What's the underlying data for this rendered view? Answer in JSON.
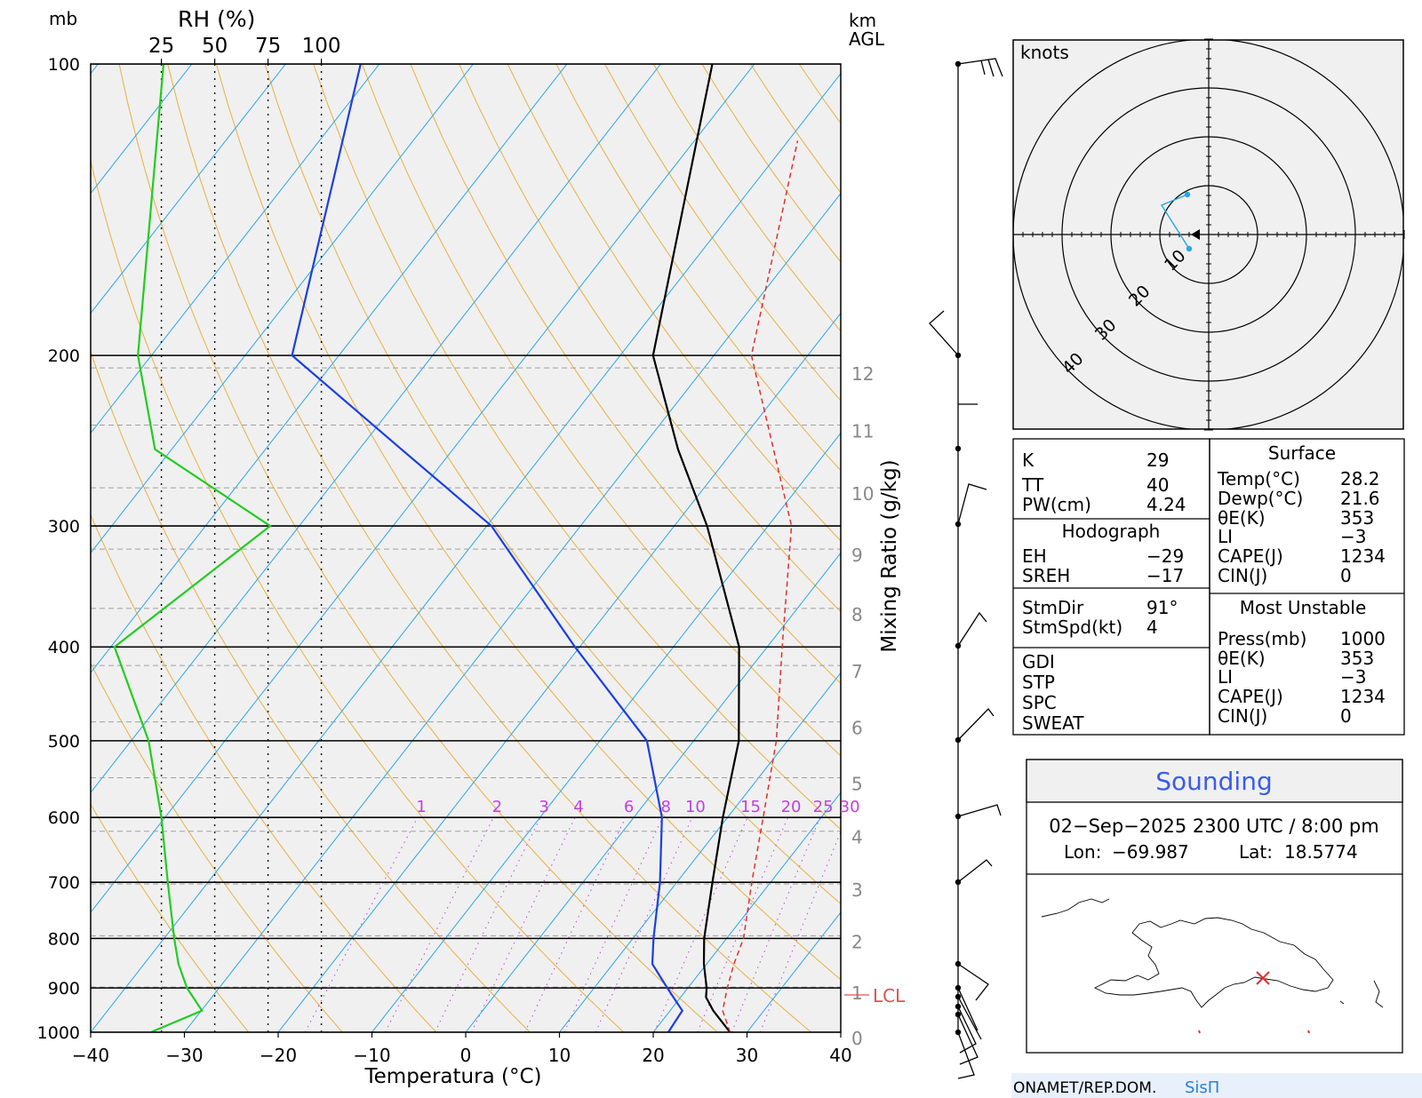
{
  "skewt": {
    "left_units": "mb",
    "rh_label": "RH (%)",
    "rh_ticks": [
      "25",
      "50",
      "75",
      "100"
    ],
    "km_label_1": "km",
    "km_label_2": "AGL",
    "mixing_ratio_axis_label": "Mixing Ratio (g/kg)",
    "x_axis_label": "Temperatura (°C)",
    "lcl_label": "LCL",
    "mixing_ratio_labels": [
      "1",
      "2",
      "3",
      "4",
      "6",
      "8",
      "10",
      "15",
      "20",
      "25",
      "30"
    ]
  },
  "chart_data": {
    "type": "line",
    "title": "",
    "xlabel": "Temperatura (°C)",
    "ylabel": "mb",
    "x_ticks": [
      -40,
      -30,
      -20,
      -10,
      0,
      10,
      20,
      30,
      40
    ],
    "pressure_ticks": [
      100,
      200,
      300,
      400,
      500,
      600,
      700,
      800,
      900,
      1000
    ],
    "km_agl_ticks": [
      0,
      1,
      2,
      3,
      4,
      5,
      6,
      7,
      8,
      9,
      10,
      11,
      12
    ],
    "xlim": [
      -40,
      40
    ],
    "ylim_mb": [
      1000,
      100
    ],
    "grid": true,
    "series": [
      {
        "name": "",
        "color": "#000000",
        "points": [
          [
            1000,
            28.2
          ],
          [
            950,
            24.6
          ],
          [
            920,
            22.7
          ],
          [
            900,
            22.0
          ],
          [
            850,
            19.7
          ],
          [
            800,
            17.6
          ],
          [
            700,
            13.8
          ],
          [
            600,
            9.5
          ],
          [
            500,
            4.8
          ],
          [
            400,
            -3.0
          ],
          [
            300,
            -16.5
          ],
          [
            250,
            -26.0
          ],
          [
            200,
            -36.5
          ],
          [
            100,
            -54.5
          ]
        ]
      },
      {
        "name": "",
        "color": "#1a3fe0",
        "points": [
          [
            1000,
            21.6
          ],
          [
            950,
            21.3
          ],
          [
            900,
            17.8
          ],
          [
            850,
            14.2
          ],
          [
            800,
            12.2
          ],
          [
            700,
            8.2
          ],
          [
            600,
            3.0
          ],
          [
            500,
            -5.0
          ],
          [
            400,
            -20.5
          ],
          [
            300,
            -39.5
          ],
          [
            250,
            -55.5
          ],
          [
            200,
            -75.0
          ],
          [
            100,
            -92.0
          ]
        ]
      },
      {
        "name": "",
        "color": "#e03030",
        "dash": "6 4",
        "points": [
          [
            1000,
            28.2
          ],
          [
            950,
            25.6
          ],
          [
            900,
            24.2
          ],
          [
            850,
            22.9
          ],
          [
            800,
            21.8
          ],
          [
            700,
            18.0
          ],
          [
            600,
            13.8
          ],
          [
            500,
            8.8
          ],
          [
            400,
            1.6
          ],
          [
            300,
            -7.5
          ],
          [
            200,
            -26.0
          ],
          [
            120,
            -39.0
          ]
        ]
      },
      {
        "name": "RH",
        "color": "#22cc22",
        "axis": "rh",
        "points": [
          [
            1000,
            20
          ],
          [
            950,
            44
          ],
          [
            900,
            37
          ],
          [
            850,
            33
          ],
          [
            800,
            31
          ],
          [
            700,
            28
          ],
          [
            600,
            25
          ],
          [
            500,
            19
          ],
          [
            400,
            3
          ],
          [
            300,
            76
          ],
          [
            250,
            22
          ],
          [
            200,
            14
          ],
          [
            100,
            26
          ]
        ]
      }
    ]
  },
  "indices": {
    "rows": [
      {
        "label": "K",
        "value": "29"
      },
      {
        "label": "TT",
        "value": "40"
      },
      {
        "label": "PW(cm)",
        "value": "4.24"
      }
    ],
    "hodograph_header": "Hodograph",
    "hodo_rows": [
      {
        "label": "EH",
        "value": "−29"
      },
      {
        "label": "SREH",
        "value": "−17"
      }
    ],
    "storm_rows": [
      {
        "label": "StmDir",
        "value": "91°"
      },
      {
        "label": "StmSpd(kt)",
        "value": "4"
      }
    ],
    "other_rows": [
      "GDI",
      "STP",
      "SPC",
      "SWEAT"
    ]
  },
  "surface": {
    "header": "Surface",
    "rows": [
      {
        "label": "Temp(°C)",
        "value": "28.2"
      },
      {
        "label": "Dewp(°C)",
        "value": "21.6"
      },
      {
        "label": "θE(K)",
        "value": "353"
      },
      {
        "label": "LI",
        "value": "−3"
      },
      {
        "label": "CAPE(J)",
        "value": "1234"
      },
      {
        "label": "CIN(J)",
        "value": "0"
      }
    ]
  },
  "most_unstable": {
    "header": "Most Unstable",
    "rows": [
      {
        "label": "Press(mb)",
        "value": "1000"
      },
      {
        "label": "θE(K)",
        "value": "353"
      },
      {
        "label": "LI",
        "value": "−3"
      },
      {
        "label": "CAPE(J)",
        "value": "1234"
      },
      {
        "label": "CIN(J)",
        "value": "0"
      }
    ]
  },
  "hodograph": {
    "units_label": "knots",
    "ring_labels": [
      "10",
      "20",
      "30",
      "40"
    ]
  },
  "sounding": {
    "title": "Sounding",
    "datetime": "02−Sep−2025 2300 UTC / 8:00 pm",
    "lon_label": "Lon:",
    "lon_value": "−69.987",
    "lat_label": "Lat:",
    "lat_value": "18.5774"
  },
  "footer": {
    "org": "ONAMET/REP.DOM.",
    "brand": "SisΠ"
  },
  "colors": {
    "temperature": "#000000",
    "dewpoint": "#1a3fe0",
    "parcel": "#e03030",
    "rh": "#22cc22",
    "isotherm": "#2aa6e6",
    "dry_adiabat": "#e8b040",
    "mixing_ratio": "#c040e0",
    "plot_bg": "#f0f0f0",
    "sounding_title": "#3a5cf0",
    "brand": "#2a7fd8"
  }
}
